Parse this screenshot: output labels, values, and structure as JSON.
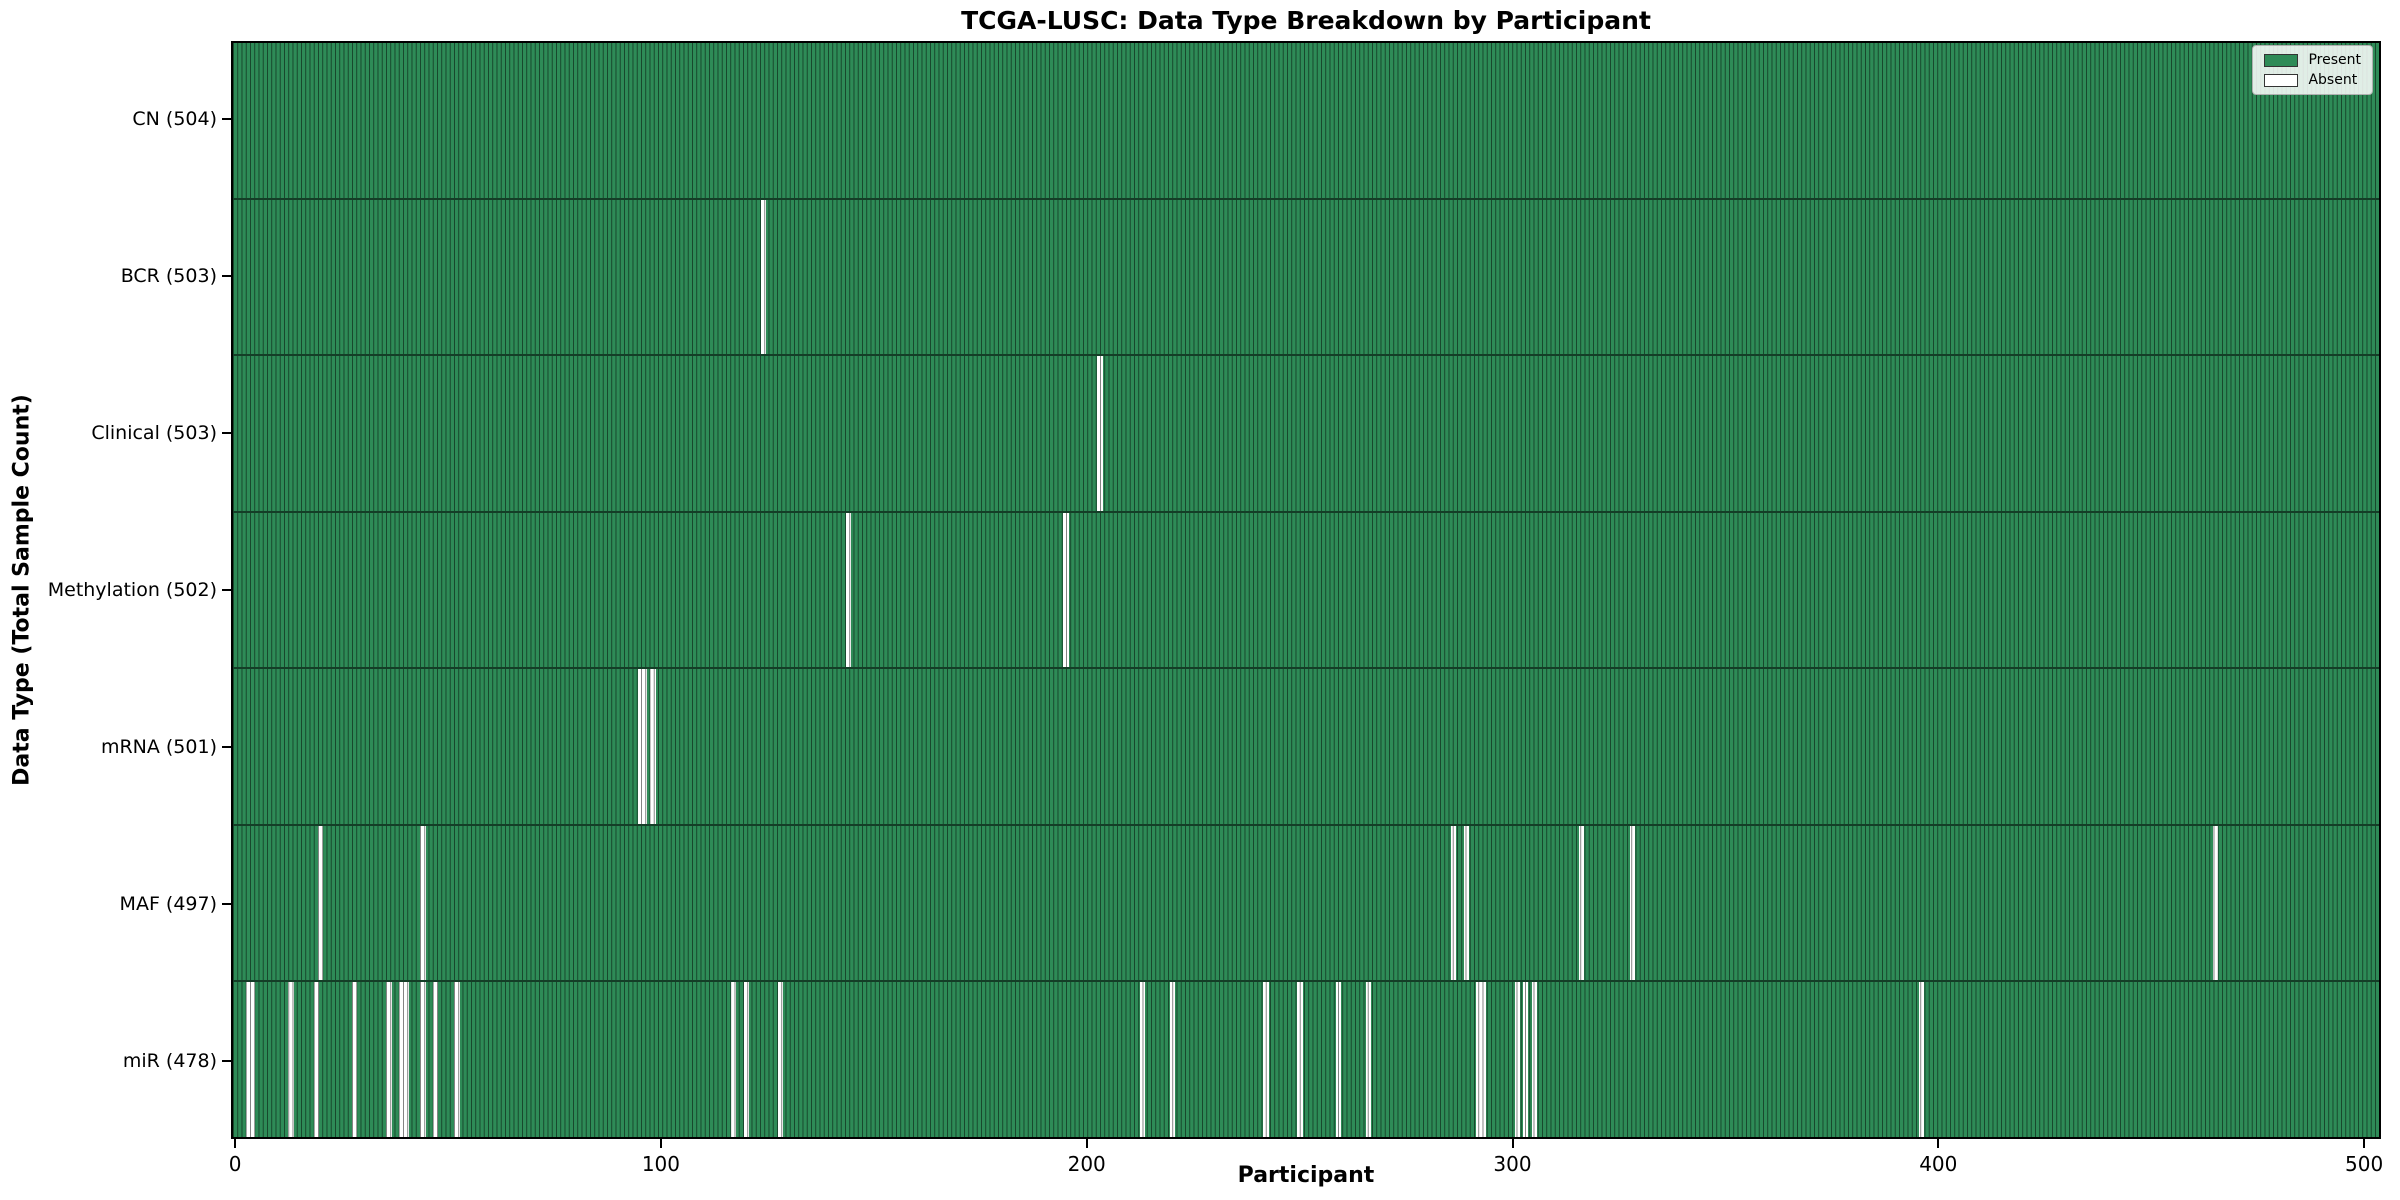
{
  "figure": {
    "title": "TCGA-LUSC: Data Type Breakdown by Participant",
    "xlabel": "Participant",
    "ylabel": "Data Type (Total Sample Count)"
  },
  "legend": {
    "items": [
      {
        "label": "Present",
        "color": "#2e8b57"
      },
      {
        "label": "Absent",
        "color": "#ffffff"
      }
    ]
  },
  "chart_data": {
    "type": "heatmap",
    "title": "TCGA-LUSC: Data Type Breakdown by Participant",
    "xlabel": "Participant",
    "ylabel": "Data Type (Total Sample Count)",
    "n_participants": 504,
    "xlim": [
      -0.5,
      503.5
    ],
    "xticks": [
      0,
      100,
      200,
      300,
      400,
      500
    ],
    "grid": false,
    "legend_position": "upper right",
    "colors": {
      "present": "#2e8b57",
      "absent": "#ffffff",
      "bar_edge": "rgba(0,0,0,0.5)"
    },
    "rows": [
      {
        "data_type": "CN",
        "label": "CN (504)",
        "total": 504,
        "absent_participants": []
      },
      {
        "data_type": "BCR",
        "label": "BCR (503)",
        "total": 503,
        "absent_participants": [
          124
        ]
      },
      {
        "data_type": "Clinical",
        "label": "Clinical (503)",
        "total": 503,
        "absent_participants": [
          203
        ]
      },
      {
        "data_type": "Methylation",
        "label": "Methylation (502)",
        "total": 502,
        "absent_participants": [
          144,
          195
        ]
      },
      {
        "data_type": "mRNA",
        "label": "mRNA (501)",
        "total": 501,
        "absent_participants": [
          95,
          96,
          98
        ]
      },
      {
        "data_type": "MAF",
        "label": "MAF (497)",
        "total": 497,
        "absent_participants": [
          20,
          44,
          286,
          289,
          316,
          328,
          465
        ]
      },
      {
        "data_type": "miR",
        "label": "miR (478)",
        "total": 478,
        "absent_participants": [
          3,
          4,
          13,
          19,
          28,
          36,
          39,
          40,
          44,
          47,
          52,
          117,
          120,
          128,
          213,
          220,
          242,
          250,
          259,
          266,
          292,
          293,
          301,
          303,
          305,
          396
        ]
      }
    ]
  }
}
